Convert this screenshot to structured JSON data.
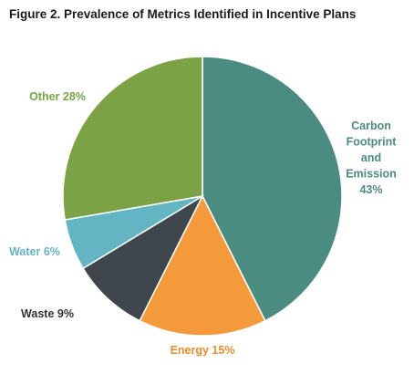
{
  "title": "Figure 2. Prevalence of Metrics Identified in Incentive Plans",
  "chart_data": {
    "type": "pie",
    "title": "Figure 2. Prevalence of Metrics Identified in Incentive Plans",
    "start_angle_deg": 0,
    "direction": "clockwise",
    "legend": "none",
    "slices": [
      {
        "name": "Carbon Footprint and Emission",
        "value": 43,
        "label_lines": [
          "Carbon",
          "Footprint",
          "and",
          "Emission",
          "43%"
        ],
        "color": "#4b8c80"
      },
      {
        "name": "Energy",
        "value": 15,
        "label_lines": [
          "Energy 15%"
        ],
        "color": "#f59a3a"
      },
      {
        "name": "Waste",
        "value": 9,
        "label_lines": [
          "Waste 9%"
        ],
        "color": "#3f474c"
      },
      {
        "name": "Water",
        "value": 6,
        "label_lines": [
          "Water 6%"
        ],
        "color": "#64b5c3"
      },
      {
        "name": "Other",
        "value": 28,
        "label_lines": [
          "Other 28%"
        ],
        "color": "#7ba346"
      }
    ],
    "label_colors": {
      "Carbon Footprint and Emission": "#4b8c80",
      "Energy": "#f08a2a",
      "Waste": "#333333",
      "Water": "#64b5c3",
      "Other": "#76a443"
    }
  }
}
